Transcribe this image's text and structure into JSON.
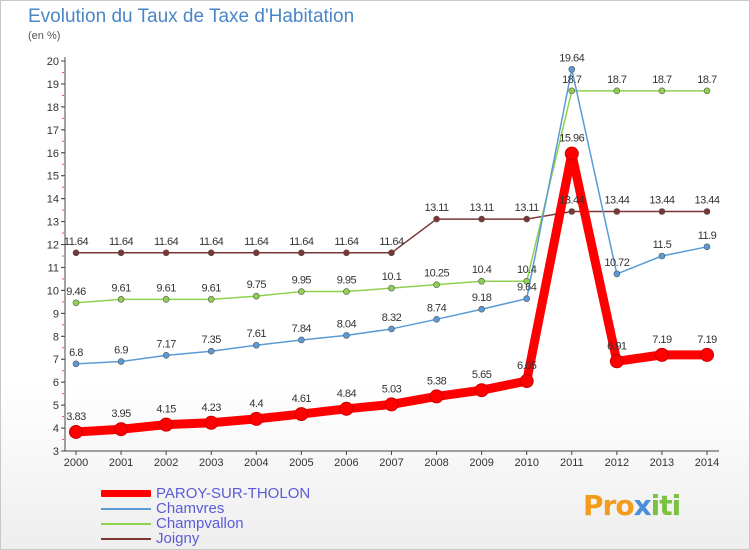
{
  "chart_data": {
    "type": "line",
    "title": "Evolution du Taux de Taxe d'Habitation",
    "subtitle": "(en %)",
    "x": [
      "2000",
      "2001",
      "2002",
      "2003",
      "2004",
      "2005",
      "2006",
      "2007",
      "2008",
      "2009",
      "2010",
      "2011",
      "2012",
      "2013",
      "2014"
    ],
    "ylim": [
      3,
      20
    ],
    "yticks": [
      3,
      4,
      5,
      6,
      7,
      8,
      9,
      10,
      11,
      12,
      13,
      14,
      15,
      16,
      17,
      18,
      19,
      20
    ],
    "grid": false,
    "legend_position": "bottom-left",
    "series": [
      {
        "name": "PAROY-SUR-THOLON",
        "color": "#ff0000",
        "values": [
          3.83,
          3.95,
          4.15,
          4.23,
          4.4,
          4.61,
          4.84,
          5.03,
          5.38,
          5.65,
          6.05,
          15.96,
          6.91,
          7.19,
          7.19
        ],
        "labels": [
          "3.83",
          "3.95",
          "4.15",
          "4.23",
          "4.4",
          "4.61",
          "4.84",
          "5.03",
          "5.38",
          "5.65",
          "6.05",
          "15.96",
          "6.91",
          "7.19",
          "7.19"
        ]
      },
      {
        "name": "Chamvres",
        "color": "#5b9bd5",
        "values": [
          6.8,
          6.9,
          7.17,
          7.35,
          7.61,
          7.84,
          8.04,
          8.32,
          8.74,
          9.18,
          9.64,
          19.64,
          10.72,
          11.5,
          11.9
        ],
        "labels": [
          "6.8",
          "6.9",
          "7.17",
          "7.35",
          "7.61",
          "7.84",
          "8.04",
          "8.32",
          "8.74",
          "9.18",
          "9.64",
          "19.64",
          "10.72",
          "11.5",
          "11.9"
        ]
      },
      {
        "name": "Champvallon",
        "color": "#8fd14f",
        "values": [
          9.46,
          9.61,
          9.61,
          9.61,
          9.75,
          9.95,
          9.95,
          10.1,
          10.25,
          10.4,
          10.4,
          18.7,
          18.7,
          18.7,
          18.7
        ],
        "labels": [
          "9.46",
          "9.61",
          "9.61",
          "9.61",
          "9.75",
          "9.95",
          "9.95",
          "10.1",
          "10.25",
          "10.4",
          "10.4",
          "18.7",
          "18.7",
          "18.7",
          "18.7"
        ]
      },
      {
        "name": "Joigny",
        "color": "#7b3535",
        "values": [
          11.64,
          11.64,
          11.64,
          11.64,
          11.64,
          11.64,
          11.64,
          11.64,
          13.11,
          13.11,
          13.11,
          13.44,
          13.44,
          13.44,
          13.44
        ],
        "labels": [
          "11.64",
          "11.64",
          "11.64",
          "11.64",
          "11.64",
          "11.64",
          "11.64",
          "11.64",
          "13.11",
          "13.11",
          "13.11",
          "13.44",
          "13.44",
          "13.44",
          "13.44"
        ]
      }
    ]
  },
  "logo": {
    "part1": "Pro",
    "part2": "x",
    "part3": "iti"
  }
}
